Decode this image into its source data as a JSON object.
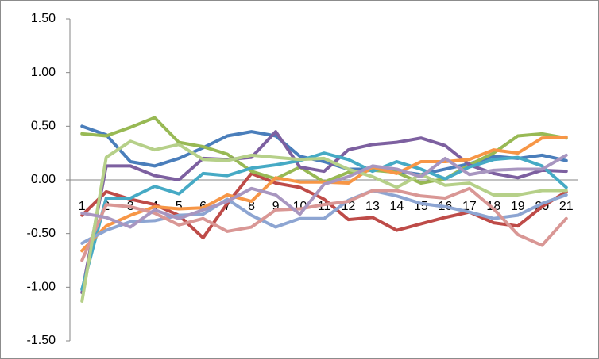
{
  "chart_data": {
    "type": "line",
    "categories": [
      "1",
      "2",
      "3",
      "4",
      "5",
      "6",
      "7",
      "8",
      "9",
      "10",
      "11",
      "12",
      "13",
      "14",
      "15",
      "16",
      "17",
      "18",
      "19",
      "20",
      "21"
    ],
    "ylim": [
      -1.5,
      1.5
    ],
    "yticks": [
      {
        "value": -1.5,
        "label": "-1.50"
      },
      {
        "value": -1.0,
        "label": "-1.00"
      },
      {
        "value": -0.5,
        "label": "-0.50"
      },
      {
        "value": 0,
        "label": "0.00"
      },
      {
        "value": 0.5,
        "label": "0.50"
      },
      {
        "value": 1.0,
        "label": "1.00"
      },
      {
        "value": 1.5,
        "label": "1.50"
      }
    ],
    "grid": false,
    "series": [
      {
        "color": "#4a7ebb",
        "values": [
          0.5,
          0.42,
          0.17,
          0.13,
          0.2,
          0.3,
          0.41,
          0.45,
          0.41,
          0.22,
          0.17,
          0.1,
          0.1,
          0.08,
          0.05,
          0.1,
          0.15,
          0.22,
          0.2,
          0.23,
          0.18
        ]
      },
      {
        "color": "#be4b48",
        "values": [
          -0.33,
          -0.11,
          -0.18,
          -0.23,
          -0.33,
          -0.54,
          -0.22,
          0.06,
          -0.03,
          -0.07,
          -0.18,
          -0.37,
          -0.35,
          -0.47,
          -0.41,
          -0.35,
          -0.3,
          -0.4,
          -0.43,
          -0.25,
          -0.11
        ]
      },
      {
        "color": "#98b954",
        "values": [
          0.43,
          0.41,
          0.49,
          0.58,
          0.35,
          0.31,
          0.24,
          0.08,
          0.01,
          0.12,
          -0.02,
          0.07,
          0.09,
          0.07,
          -0.03,
          0.01,
          0.14,
          0.25,
          0.41,
          0.43,
          0.39
        ]
      },
      {
        "color": "#7d60a0",
        "values": [
          -1.05,
          0.13,
          0.13,
          0.04,
          0.0,
          0.2,
          0.19,
          0.21,
          0.45,
          0.12,
          0.08,
          0.28,
          0.33,
          0.35,
          0.39,
          0.32,
          0.14,
          0.06,
          0.02,
          0.09,
          0.08
        ]
      },
      {
        "color": "#46aac5",
        "values": [
          -1.02,
          -0.17,
          -0.17,
          -0.06,
          -0.13,
          0.06,
          0.04,
          0.11,
          0.14,
          0.18,
          0.25,
          0.19,
          0.08,
          0.17,
          0.1,
          0.01,
          0.12,
          0.19,
          0.21,
          0.13,
          -0.07
        ]
      },
      {
        "color": "#f79646",
        "values": [
          -0.66,
          -0.43,
          -0.33,
          -0.25,
          -0.27,
          -0.26,
          -0.14,
          -0.2,
          0.02,
          -0.02,
          -0.02,
          -0.03,
          0.12,
          0.06,
          0.17,
          0.17,
          0.19,
          0.28,
          0.25,
          0.39,
          0.4
        ]
      },
      {
        "color": "#8da5d2",
        "values": [
          -0.59,
          -0.47,
          -0.39,
          -0.38,
          -0.33,
          -0.32,
          -0.18,
          -0.33,
          -0.44,
          -0.36,
          -0.36,
          -0.19,
          -0.1,
          -0.15,
          -0.22,
          -0.25,
          -0.3,
          -0.36,
          -0.33,
          -0.22,
          -0.14
        ]
      },
      {
        "color": "#d99795",
        "values": [
          -0.75,
          -0.23,
          -0.25,
          -0.31,
          -0.42,
          -0.36,
          -0.48,
          -0.44,
          -0.28,
          -0.27,
          -0.23,
          -0.2,
          -0.1,
          -0.1,
          -0.15,
          -0.17,
          -0.08,
          -0.27,
          -0.51,
          -0.61,
          -0.36
        ]
      },
      {
        "color": "#b6d089",
        "values": [
          -1.13,
          0.21,
          0.36,
          0.28,
          0.33,
          0.19,
          0.18,
          0.23,
          0.21,
          0.19,
          0.2,
          0.1,
          0.03,
          -0.07,
          0.05,
          -0.05,
          -0.03,
          -0.14,
          -0.14,
          -0.1,
          -0.1
        ]
      },
      {
        "color": "#a896c0",
        "values": [
          -0.31,
          -0.35,
          -0.44,
          -0.28,
          -0.36,
          -0.28,
          -0.2,
          -0.08,
          -0.14,
          -0.32,
          -0.04,
          0.03,
          0.13,
          0.1,
          0.03,
          0.2,
          0.05,
          0.09,
          0.1,
          0.1,
          0.23
        ]
      }
    ]
  }
}
